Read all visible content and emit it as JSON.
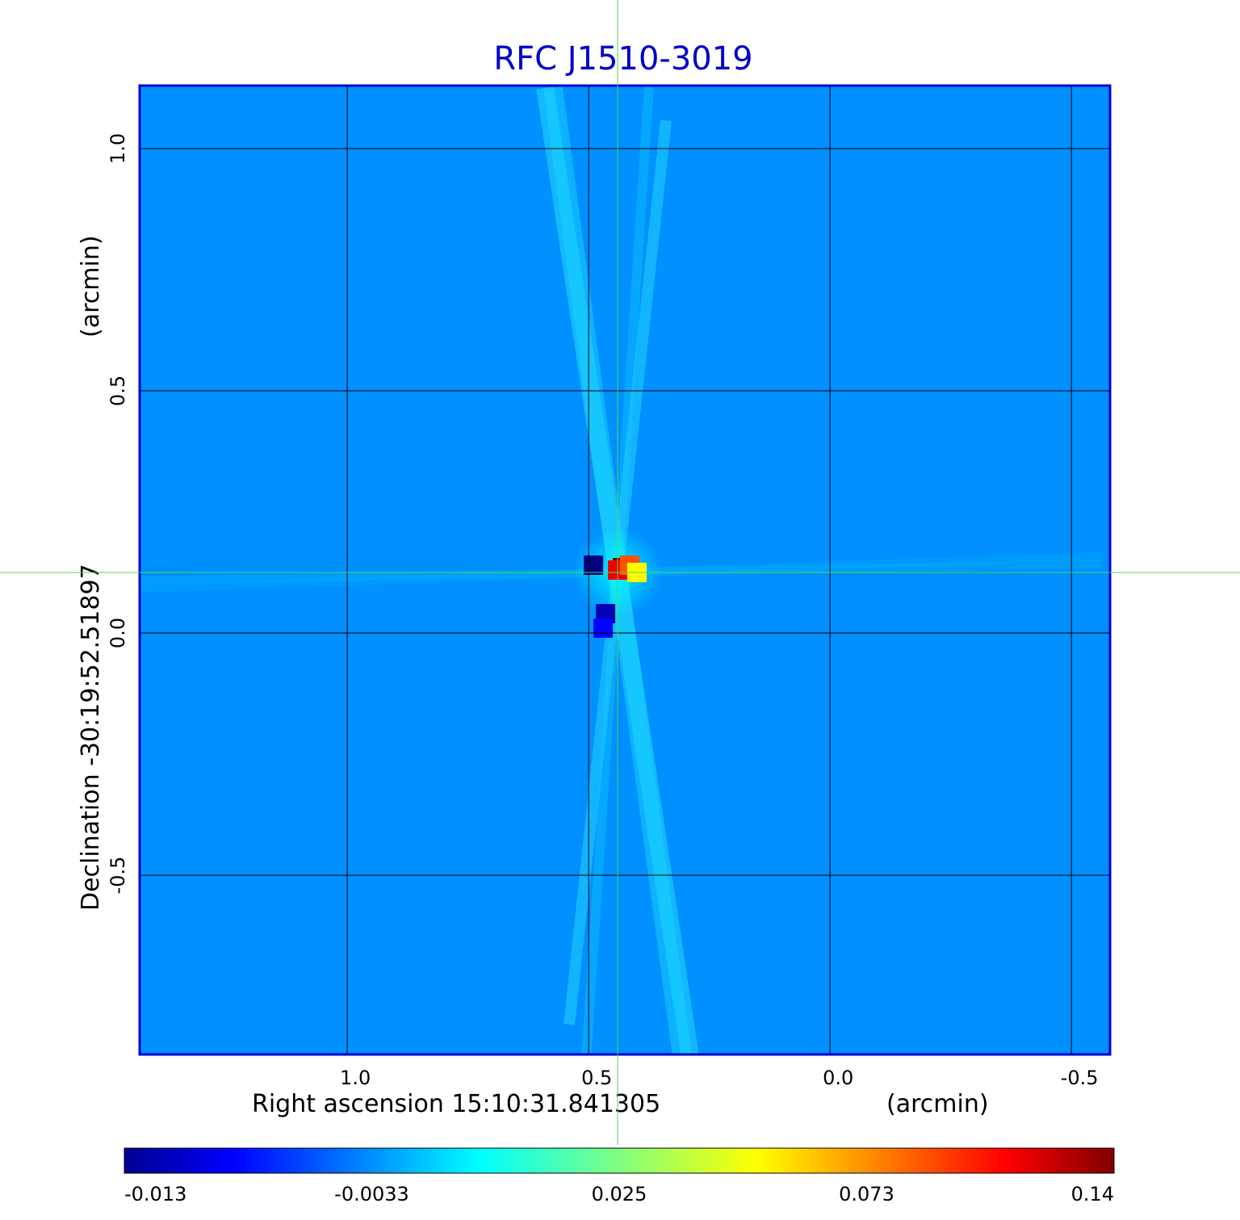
{
  "chart_data": {
    "type": "heatmap",
    "title": "RFC J1510-3019",
    "xlabel": "Right ascension  15:10:31.841305",
    "xunit": "(arcmin)",
    "ylabel": "Declination  -30:19:52.51897",
    "yunit": "(arcmin)",
    "x_axis_reversed": true,
    "xlim": [
      1.43,
      -0.58
    ],
    "ylim": [
      -0.87,
      1.13
    ],
    "x_ticks": [
      1.0,
      0.5,
      0.0,
      -0.5
    ],
    "x_tick_labels": [
      "1.0",
      "0.5",
      "0.0",
      "-0.5"
    ],
    "y_ticks": [
      1.0,
      0.5,
      0.0,
      -0.5
    ],
    "y_tick_labels": [
      "1.0",
      "0.5",
      "0.0",
      "-0.5"
    ],
    "grid": true,
    "crosshair": {
      "x": 0.44,
      "y": 0.125,
      "color": "#4cd94c"
    },
    "background_value": -0.0015,
    "features": [
      {
        "x": 0.43,
        "y": 0.135,
        "value": 0.14
      },
      {
        "x": 0.44,
        "y": 0.13,
        "value": 0.11
      },
      {
        "x": 0.415,
        "y": 0.14,
        "value": 0.085
      },
      {
        "x": 0.4,
        "y": 0.125,
        "value": 0.05
      },
      {
        "x": 0.49,
        "y": 0.14,
        "value": -0.013
      },
      {
        "x": 0.465,
        "y": 0.04,
        "value": -0.011
      },
      {
        "x": 0.47,
        "y": 0.01,
        "value": -0.008
      }
    ],
    "colorbar": {
      "colormap": "jet",
      "ticks": [
        -0.013,
        -0.0033,
        0.025,
        0.073,
        0.14
      ],
      "tick_labels": [
        "-0.013",
        "-0.0033",
        "0.025",
        "0.073",
        "0.14"
      ]
    },
    "colors": {
      "title": "#0000cc",
      "frame": "#0000cc",
      "grid": "#000000"
    }
  }
}
